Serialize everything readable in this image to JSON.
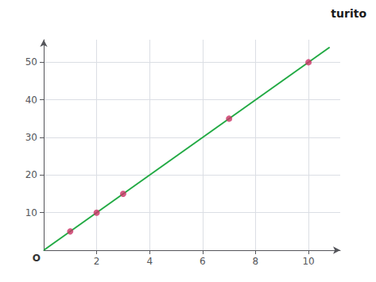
{
  "chart_data": {
    "type": "scatter",
    "series": [
      {
        "type": "line",
        "color": "#22aa44",
        "x": [
          0,
          10.8
        ],
        "values": [
          0,
          54
        ]
      },
      {
        "type": "scatter",
        "color": "#cc3366",
        "x": [
          1,
          2,
          3,
          7,
          10
        ],
        "values": [
          5,
          10,
          15,
          35,
          50
        ]
      }
    ],
    "xlim": [
      0,
      11.2
    ],
    "ylim": [
      0,
      56
    ],
    "xticks": [
      2,
      4,
      6,
      8,
      10
    ],
    "yticks": [
      10,
      20,
      30,
      40,
      50
    ],
    "grid": true,
    "annotations": [
      {
        "text": "O",
        "x": 0,
        "y": 0
      },
      {
        "text": "turito"
      }
    ]
  }
}
